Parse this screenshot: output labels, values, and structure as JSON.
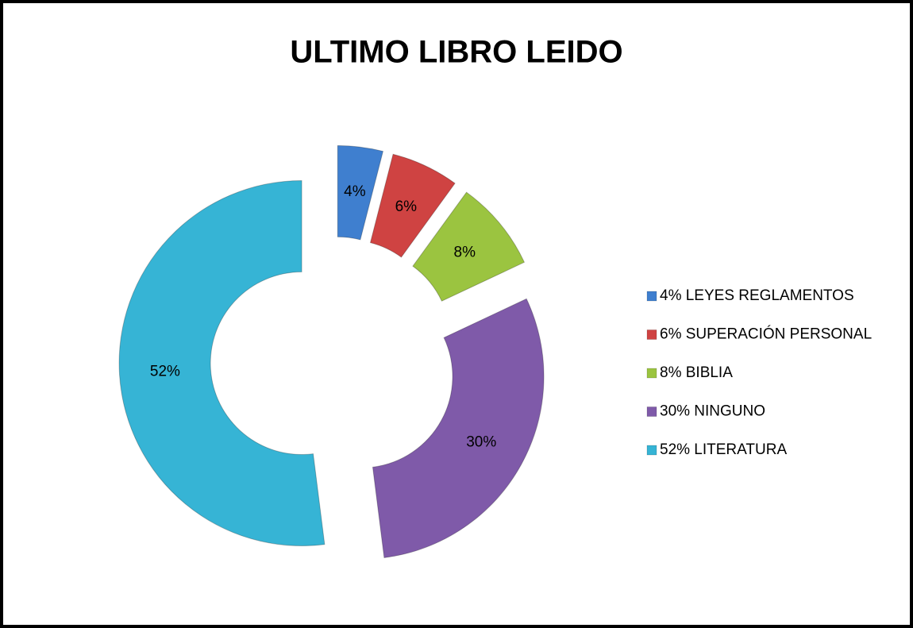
{
  "chart_data": {
    "type": "donut",
    "title": "ULTIMO LIBRO LEIDO",
    "categories": [
      "4% LEYES REGLAMENTOS",
      "6% SUPERACIÓN PERSONAL",
      "8% BIBLIA",
      "30% NINGUNO",
      "52% LITERATURA"
    ],
    "values": [
      4,
      6,
      8,
      30,
      52
    ],
    "value_labels": [
      "4%",
      "6%",
      "8%",
      "30%",
      "52%"
    ],
    "colors": [
      "#3f7fcf",
      "#cf4342",
      "#9bc440",
      "#7f5aa9",
      "#36b4d5"
    ],
    "legend": "right"
  }
}
